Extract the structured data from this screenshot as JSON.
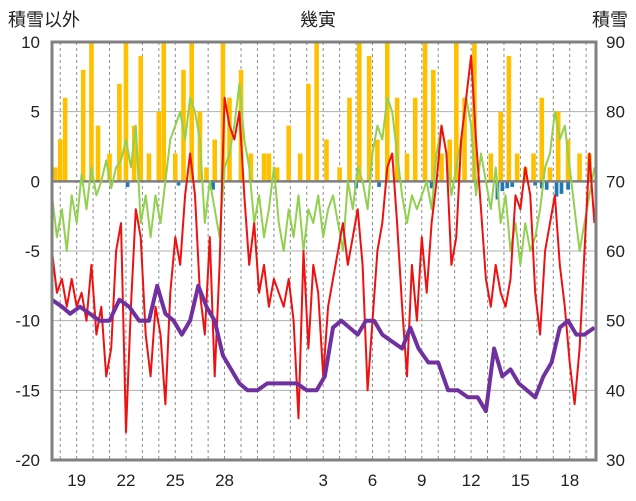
{
  "chart_data": {
    "type": "line",
    "title": "幾寅",
    "y_left_label": "積雪以外",
    "y_right_label": "積雪",
    "y_left_range": [
      -20,
      10
    ],
    "y_right_range": [
      30,
      90
    ],
    "y_left_ticks": [
      "10",
      "5",
      "0",
      "-5",
      "-10",
      "-15",
      "-20"
    ],
    "y_right_ticks": [
      "90",
      "80",
      "70",
      "60",
      "50",
      "40",
      "30"
    ],
    "x_ticks": [
      {
        "day": 19,
        "label": "19"
      },
      {
        "day": 22,
        "label": "22"
      },
      {
        "day": 25,
        "label": "25"
      },
      {
        "day": 28,
        "label": "28"
      },
      {
        "day": 34,
        "label": "3"
      },
      {
        "day": 37,
        "label": "6"
      },
      {
        "day": 40,
        "label": "9"
      },
      {
        "day": 43,
        "label": "12"
      },
      {
        "day": 46,
        "label": "15"
      },
      {
        "day": 49,
        "label": "18"
      }
    ],
    "x_range": [
      17.5,
      50.6
    ],
    "colors": {
      "temp_max": "#92d050",
      "temp_min": "#ee1111",
      "snow_depth": "#7030a0",
      "precip": "#ffc000",
      "snow_change_neg": "#1f77b4",
      "zero_line": "#7f7f7f",
      "frame": "#808080"
    },
    "temp_max_series": [
      [
        17.5,
        -1
      ],
      [
        17.8,
        -4
      ],
      [
        18.1,
        -2
      ],
      [
        18.4,
        -5
      ],
      [
        18.7,
        -1
      ],
      [
        19.0,
        -3
      ],
      [
        19.3,
        0.5
      ],
      [
        19.6,
        -2
      ],
      [
        19.9,
        1
      ],
      [
        20.2,
        -1
      ],
      [
        20.5,
        0
      ],
      [
        20.8,
        1.5
      ],
      [
        21.1,
        -0.5
      ],
      [
        21.4,
        1
      ],
      [
        21.7,
        1.5
      ],
      [
        22.0,
        3
      ],
      [
        22.3,
        1
      ],
      [
        22.6,
        4
      ],
      [
        22.9,
        -3
      ],
      [
        23.2,
        -1
      ],
      [
        23.5,
        -4
      ],
      [
        23.8,
        -1
      ],
      [
        24.1,
        -3
      ],
      [
        24.4,
        0
      ],
      [
        24.7,
        3
      ],
      [
        25.0,
        4
      ],
      [
        25.3,
        5
      ],
      [
        25.6,
        3
      ],
      [
        25.9,
        6
      ],
      [
        26.2,
        5
      ],
      [
        26.5,
        3
      ],
      [
        26.8,
        -3
      ],
      [
        27.1,
        0
      ],
      [
        27.4,
        -2
      ],
      [
        27.7,
        -4
      ],
      [
        28.0,
        1
      ],
      [
        28.3,
        2
      ],
      [
        28.6,
        4
      ],
      [
        28.9,
        7
      ],
      [
        29.2,
        3
      ],
      [
        29.5,
        1
      ],
      [
        29.8,
        -3
      ],
      [
        30.1,
        -1
      ],
      [
        30.4,
        -4
      ],
      [
        30.7,
        -2
      ],
      [
        31.0,
        1
      ],
      [
        31.3,
        -3
      ],
      [
        31.6,
        -5
      ],
      [
        31.9,
        -2
      ],
      [
        32.2,
        -4
      ],
      [
        32.5,
        -1
      ],
      [
        32.8,
        -5
      ],
      [
        33.1,
        -2
      ],
      [
        33.4,
        -3
      ],
      [
        33.7,
        -1
      ],
      [
        34.0,
        -4
      ],
      [
        34.3,
        -2
      ],
      [
        34.6,
        -1
      ],
      [
        34.9,
        -3
      ],
      [
        35.2,
        -5
      ],
      [
        35.5,
        0
      ],
      [
        35.8,
        -2
      ],
      [
        36.1,
        1
      ],
      [
        36.4,
        0
      ],
      [
        36.7,
        -2
      ],
      [
        37.0,
        2
      ],
      [
        37.3,
        4
      ],
      [
        37.6,
        3
      ],
      [
        37.9,
        6
      ],
      [
        38.2,
        5
      ],
      [
        38.5,
        2
      ],
      [
        38.8,
        -1
      ],
      [
        39.1,
        -3
      ],
      [
        39.4,
        -1
      ],
      [
        39.7,
        -2
      ],
      [
        40.0,
        -1
      ],
      [
        40.3,
        0
      ],
      [
        40.6,
        -2
      ],
      [
        40.9,
        2
      ],
      [
        41.2,
        4
      ],
      [
        41.5,
        2
      ],
      [
        41.8,
        -1
      ],
      [
        42.1,
        1
      ],
      [
        42.4,
        3
      ],
      [
        42.7,
        6
      ],
      [
        43.0,
        4
      ],
      [
        43.3,
        -1
      ],
      [
        43.6,
        2
      ],
      [
        43.9,
        0
      ],
      [
        44.2,
        -2
      ],
      [
        44.5,
        1
      ],
      [
        44.8,
        -3
      ],
      [
        45.1,
        -1
      ],
      [
        45.4,
        -5
      ],
      [
        45.7,
        -3
      ],
      [
        46.0,
        -6
      ],
      [
        46.3,
        -3
      ],
      [
        46.6,
        -5
      ],
      [
        46.9,
        -4
      ],
      [
        47.2,
        -2
      ],
      [
        47.5,
        1
      ],
      [
        47.8,
        2
      ],
      [
        48.1,
        5
      ],
      [
        48.4,
        3
      ],
      [
        48.7,
        4
      ],
      [
        49.0,
        1
      ],
      [
        49.3,
        -2
      ],
      [
        49.6,
        -5
      ],
      [
        49.9,
        -3
      ],
      [
        50.2,
        -1
      ],
      [
        50.5,
        1
      ]
    ],
    "temp_min_series": [
      [
        17.5,
        -5
      ],
      [
        17.8,
        -8
      ],
      [
        18.1,
        -7
      ],
      [
        18.4,
        -9
      ],
      [
        18.7,
        -7
      ],
      [
        19.0,
        -9
      ],
      [
        19.3,
        -8
      ],
      [
        19.6,
        -10
      ],
      [
        19.9,
        -6
      ],
      [
        20.2,
        -11
      ],
      [
        20.5,
        -9
      ],
      [
        20.8,
        -14
      ],
      [
        21.1,
        -12
      ],
      [
        21.4,
        -5
      ],
      [
        21.7,
        -3
      ],
      [
        22.0,
        -18
      ],
      [
        22.3,
        -9
      ],
      [
        22.6,
        -2
      ],
      [
        22.9,
        -4
      ],
      [
        23.2,
        -11
      ],
      [
        23.5,
        -14
      ],
      [
        23.8,
        -9
      ],
      [
        24.1,
        -11
      ],
      [
        24.4,
        -16
      ],
      [
        24.7,
        -8
      ],
      [
        25.0,
        -4
      ],
      [
        25.3,
        -6
      ],
      [
        25.6,
        -1
      ],
      [
        25.9,
        2
      ],
      [
        26.2,
        -1
      ],
      [
        26.5,
        -8
      ],
      [
        26.8,
        -11
      ],
      [
        27.1,
        -4
      ],
      [
        27.4,
        -14
      ],
      [
        27.7,
        -6
      ],
      [
        28.0,
        6
      ],
      [
        28.3,
        4
      ],
      [
        28.6,
        3
      ],
      [
        28.9,
        5
      ],
      [
        29.2,
        -1
      ],
      [
        29.5,
        -6
      ],
      [
        29.8,
        -3
      ],
      [
        30.1,
        -8
      ],
      [
        30.4,
        -6
      ],
      [
        30.7,
        -9
      ],
      [
        31.0,
        -7
      ],
      [
        31.3,
        -8
      ],
      [
        31.6,
        -9
      ],
      [
        31.9,
        -7
      ],
      [
        32.2,
        -10
      ],
      [
        32.5,
        -17
      ],
      [
        32.8,
        -5
      ],
      [
        33.1,
        -12
      ],
      [
        33.4,
        -6
      ],
      [
        33.7,
        -8
      ],
      [
        34.0,
        -14
      ],
      [
        34.3,
        -9
      ],
      [
        34.6,
        -7
      ],
      [
        34.9,
        -5
      ],
      [
        35.2,
        -3
      ],
      [
        35.5,
        -6
      ],
      [
        35.8,
        -4
      ],
      [
        36.1,
        -2
      ],
      [
        36.4,
        -6
      ],
      [
        36.7,
        -15
      ],
      [
        37.0,
        -10
      ],
      [
        37.3,
        -5
      ],
      [
        37.6,
        -3
      ],
      [
        37.9,
        1
      ],
      [
        38.2,
        2
      ],
      [
        38.5,
        -3
      ],
      [
        38.8,
        -9
      ],
      [
        39.1,
        -14
      ],
      [
        39.4,
        -6
      ],
      [
        39.7,
        -10
      ],
      [
        40.0,
        -4
      ],
      [
        40.3,
        -8
      ],
      [
        40.6,
        -3
      ],
      [
        40.9,
        0
      ],
      [
        41.2,
        4
      ],
      [
        41.5,
        2
      ],
      [
        41.8,
        -6
      ],
      [
        42.1,
        -4
      ],
      [
        42.4,
        3
      ],
      [
        42.7,
        6
      ],
      [
        43.0,
        9
      ],
      [
        43.3,
        3
      ],
      [
        43.6,
        -2
      ],
      [
        43.9,
        -7
      ],
      [
        44.2,
        -9
      ],
      [
        44.5,
        -6
      ],
      [
        44.8,
        -8
      ],
      [
        45.1,
        -9
      ],
      [
        45.4,
        -7
      ],
      [
        45.7,
        -1
      ],
      [
        46.0,
        -2
      ],
      [
        46.3,
        1
      ],
      [
        46.6,
        -1
      ],
      [
        46.9,
        -8
      ],
      [
        47.2,
        -11
      ],
      [
        47.5,
        -5
      ],
      [
        47.8,
        -3
      ],
      [
        48.1,
        -1
      ],
      [
        48.4,
        -6
      ],
      [
        48.7,
        -9
      ],
      [
        49.0,
        -13
      ],
      [
        49.3,
        -16
      ],
      [
        49.6,
        -12
      ],
      [
        49.9,
        -5
      ],
      [
        50.2,
        2
      ],
      [
        50.5,
        -3
      ]
    ],
    "snow_depth_series": [
      [
        17.5,
        53
      ],
      [
        18.1,
        52
      ],
      [
        18.6,
        51
      ],
      [
        19.2,
        52
      ],
      [
        19.8,
        51
      ],
      [
        20.4,
        50
      ],
      [
        21.0,
        50
      ],
      [
        21.6,
        53
      ],
      [
        22.2,
        52
      ],
      [
        22.8,
        50
      ],
      [
        23.4,
        50
      ],
      [
        23.9,
        55
      ],
      [
        24.4,
        51
      ],
      [
        24.9,
        50
      ],
      [
        25.4,
        48
      ],
      [
        25.9,
        50
      ],
      [
        26.4,
        55
      ],
      [
        26.9,
        52
      ],
      [
        27.4,
        50
      ],
      [
        27.9,
        45
      ],
      [
        28.4,
        43
      ],
      [
        28.9,
        41
      ],
      [
        29.4,
        40
      ],
      [
        30.0,
        40
      ],
      [
        30.6,
        41
      ],
      [
        31.2,
        41
      ],
      [
        31.8,
        41
      ],
      [
        32.4,
        41
      ],
      [
        33.0,
        40
      ],
      [
        33.6,
        40
      ],
      [
        34.1,
        42
      ],
      [
        34.6,
        49
      ],
      [
        35.1,
        50
      ],
      [
        35.6,
        49
      ],
      [
        36.1,
        48
      ],
      [
        36.6,
        50
      ],
      [
        37.1,
        50
      ],
      [
        37.6,
        48
      ],
      [
        38.2,
        47
      ],
      [
        38.8,
        46
      ],
      [
        39.3,
        49
      ],
      [
        39.8,
        46
      ],
      [
        40.4,
        44
      ],
      [
        41.0,
        44
      ],
      [
        41.6,
        40
      ],
      [
        42.2,
        40
      ],
      [
        42.8,
        39
      ],
      [
        43.4,
        39
      ],
      [
        43.9,
        37
      ],
      [
        44.4,
        46
      ],
      [
        44.9,
        42
      ],
      [
        45.4,
        43
      ],
      [
        45.9,
        41
      ],
      [
        46.4,
        40
      ],
      [
        46.9,
        39
      ],
      [
        47.4,
        42
      ],
      [
        47.9,
        44
      ],
      [
        48.4,
        49
      ],
      [
        48.9,
        50
      ],
      [
        49.4,
        48
      ],
      [
        49.9,
        48
      ],
      [
        50.5,
        49
      ]
    ],
    "precip_series": [
      [
        17.7,
        1
      ],
      [
        18.0,
        3
      ],
      [
        18.3,
        6
      ],
      [
        19.4,
        8
      ],
      [
        19.9,
        10
      ],
      [
        20.3,
        4
      ],
      [
        21.0,
        2
      ],
      [
        21.6,
        7
      ],
      [
        22.0,
        10
      ],
      [
        22.5,
        4
      ],
      [
        22.9,
        9
      ],
      [
        23.4,
        2
      ],
      [
        24.0,
        5
      ],
      [
        24.3,
        10
      ],
      [
        25.0,
        2
      ],
      [
        25.5,
        8
      ],
      [
        26.0,
        10
      ],
      [
        26.5,
        5
      ],
      [
        26.9,
        1
      ],
      [
        27.4,
        3
      ],
      [
        27.9,
        10
      ],
      [
        28.3,
        6
      ],
      [
        29.0,
        8
      ],
      [
        29.6,
        2
      ],
      [
        30.4,
        2
      ],
      [
        30.7,
        2
      ],
      [
        31.2,
        1
      ],
      [
        31.9,
        4
      ],
      [
        32.6,
        2
      ],
      [
        33.1,
        7
      ],
      [
        33.6,
        10
      ],
      [
        34.2,
        3
      ],
      [
        35.0,
        1
      ],
      [
        35.6,
        6
      ],
      [
        36.2,
        10
      ],
      [
        36.8,
        9
      ],
      [
        37.3,
        3
      ],
      [
        37.9,
        10
      ],
      [
        38.5,
        6
      ],
      [
        39.1,
        2
      ],
      [
        39.6,
        6
      ],
      [
        40.2,
        10
      ],
      [
        40.7,
        8
      ],
      [
        41.2,
        2
      ],
      [
        41.7,
        3
      ],
      [
        42.1,
        10
      ],
      [
        42.6,
        6
      ],
      [
        43.2,
        10
      ],
      [
        44.2,
        2
      ],
      [
        44.8,
        5
      ],
      [
        45.3,
        9
      ],
      [
        45.8,
        2
      ],
      [
        46.3,
        1
      ],
      [
        46.8,
        2
      ],
      [
        47.3,
        6
      ],
      [
        47.8,
        1
      ],
      [
        48.3,
        5
      ],
      [
        48.9,
        3
      ],
      [
        49.6,
        2
      ],
      [
        50.2,
        2
      ]
    ],
    "snow_change_neg_series": [
      [
        22.1,
        -0.4
      ],
      [
        25.2,
        -0.3
      ],
      [
        27.3,
        -0.6
      ],
      [
        36.0,
        -0.5
      ],
      [
        37.4,
        -0.4
      ],
      [
        40.6,
        -0.5
      ],
      [
        43.3,
        -0.3
      ],
      [
        44.6,
        -1.3
      ],
      [
        44.9,
        -0.7
      ],
      [
        45.2,
        -0.5
      ],
      [
        45.5,
        -0.4
      ],
      [
        46.9,
        -0.3
      ],
      [
        47.3,
        -0.5
      ],
      [
        47.6,
        -0.6
      ],
      [
        48.2,
        -1.1
      ],
      [
        48.5,
        -0.9
      ],
      [
        48.9,
        -0.6
      ]
    ]
  }
}
